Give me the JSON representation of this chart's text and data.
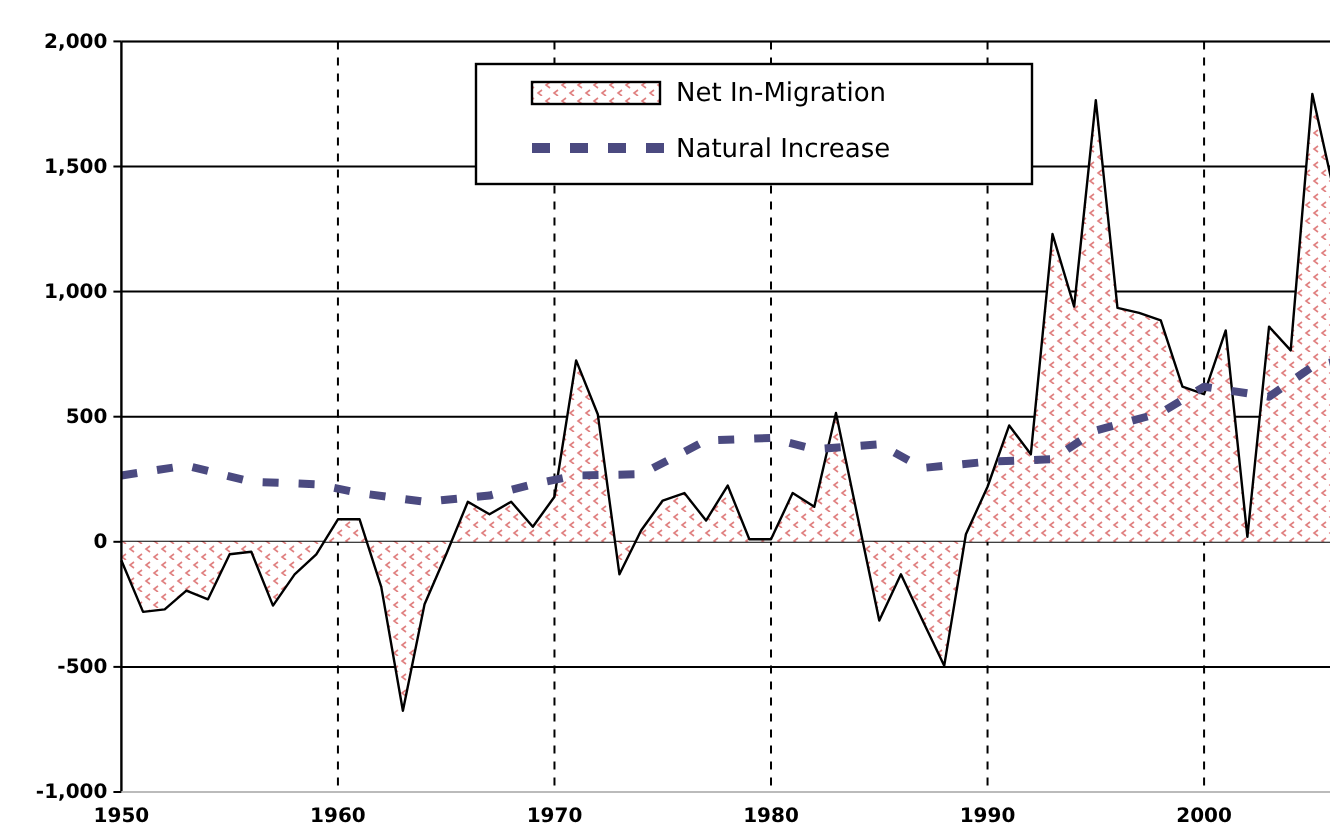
{
  "chart_data": {
    "type": "area",
    "xlim": [
      1950,
      2006
    ],
    "xticks": [
      1950,
      1960,
      1970,
      1980,
      1990,
      2000
    ],
    "ylim": [
      -1000,
      2000
    ],
    "yticks": [
      {
        "value": -1000,
        "label": "-1,000"
      },
      {
        "value": -500,
        "label": "-500"
      },
      0,
      500,
      {
        "value": 1000,
        "label": "1,000"
      },
      {
        "value": 1500,
        "label": "1,500"
      },
      {
        "value": 2000,
        "label": "2,000"
      }
    ],
    "grid": true,
    "legend": "top",
    "series": [
      {
        "name": "Net In-Migration",
        "color": "#e08080",
        "x": [
          1950,
          1951,
          1952,
          1953,
          1954,
          1955,
          1956,
          1957,
          1958,
          1959,
          1960,
          1961,
          1962,
          1963,
          1964,
          1965,
          1966,
          1967,
          1968,
          1969,
          1970,
          1971,
          1972,
          1973,
          1974,
          1975,
          1976,
          1977,
          1978,
          1979,
          1980,
          1981,
          1982,
          1983,
          1984,
          1985,
          1986,
          1987,
          1988,
          1989,
          1990,
          1991,
          1992,
          1993,
          1994,
          1995,
          1996,
          1997,
          1998,
          1999,
          2000,
          2001,
          2002,
          2003,
          2004,
          2005,
          2006
        ],
        "values": [
          -75,
          -280,
          -270,
          -195,
          -230,
          -50,
          -40,
          -255,
          -130,
          -50,
          90,
          90,
          -180,
          -675,
          -250,
          -50,
          160,
          110,
          160,
          60,
          180,
          725,
          510,
          -130,
          45,
          165,
          195,
          85,
          225,
          10,
          10,
          195,
          140,
          515,
          100,
          -315,
          -130,
          -315,
          -495,
          30,
          220,
          465,
          350,
          1230,
          940,
          1765,
          935,
          915,
          885,
          620,
          590,
          845,
          20,
          860,
          765,
          1790,
          1400
        ]
      },
      {
        "name": "Natural Increase",
        "type": "line",
        "line_style": "dashed",
        "color": "#4b4a80",
        "x": [
          1950,
          1953,
          1956,
          1959,
          1961,
          1964,
          1967,
          1969,
          1971,
          1974,
          1977,
          1980,
          1982,
          1985,
          1987,
          1990,
          1993,
          1995,
          1998,
          2000,
          2003,
          2005,
          2006
        ],
        "values": [
          265,
          305,
          240,
          230,
          195,
          160,
          185,
          230,
          265,
          270,
          405,
          415,
          370,
          390,
          295,
          320,
          330,
          445,
          515,
          620,
          580,
          700,
          720
        ]
      }
    ]
  }
}
